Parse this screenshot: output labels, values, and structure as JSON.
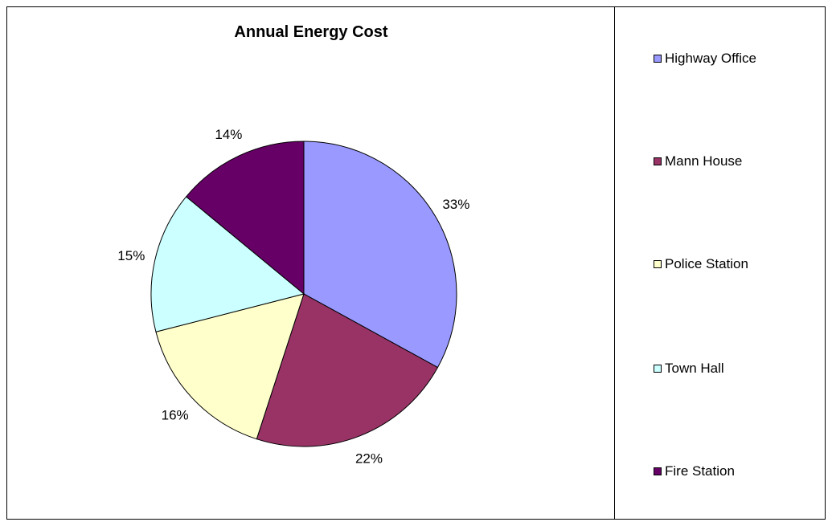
{
  "chart_data": {
    "type": "pie",
    "title": "Annual Energy Cost",
    "categories": [
      "Highway Office",
      "Mann House",
      "Police Station",
      "Town Hall",
      "Fire Station"
    ],
    "values": [
      33,
      22,
      16,
      15,
      14
    ],
    "labels": [
      "33%",
      "22%",
      "16%",
      "15%",
      "14%"
    ],
    "colors": [
      "#9999FF",
      "#993366",
      "#FFFFCC",
      "#CCFFFF",
      "#660066"
    ],
    "legend_position": "right",
    "start_angle": "12 o'clock",
    "direction": "clockwise"
  }
}
